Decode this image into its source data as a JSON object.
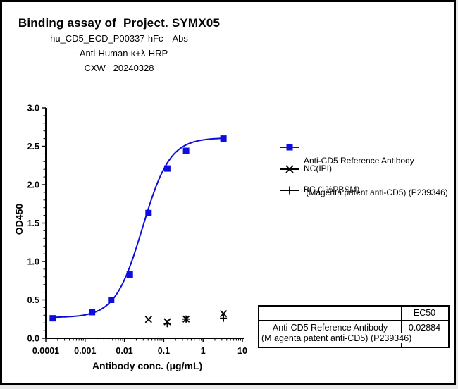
{
  "page": {
    "title": "Binding assay of  Project. SYMX05",
    "subtitle1": "hu_CD5_ECD_P00337-hFc---Abs",
    "subtitle2": "---Anti-Human-κ+λ-HRP",
    "subtitle3": "CXW   20240328"
  },
  "chart_data": {
    "type": "scatter",
    "x_scale": "log",
    "xlabel": "Antibody conc. (μg/mL)",
    "ylabel": "OD450",
    "xlim": [
      0.0001,
      10
    ],
    "ylim": [
      0.0,
      3.0
    ],
    "x_ticks": [
      "0.0001",
      "0.001",
      "0.01",
      "0.1",
      "1",
      "10"
    ],
    "y_ticks": [
      "0.0",
      "0.5",
      "1.0",
      "1.5",
      "2.0",
      "2.5",
      "3.0"
    ],
    "grid": false,
    "legend_position": "right",
    "series": [
      {
        "name": "Anti-CD5 Reference Antibody (Magenta patent anti-CD5) (P239346)",
        "marker": "square",
        "color": "#0d0de0",
        "curve_fit": {
          "model": "4PL",
          "bottom": 0.27,
          "top": 2.61,
          "ec50": 0.02884,
          "hill": 1.25
        },
        "x": [
          0.00015,
          0.0015,
          0.0046,
          0.0137,
          0.041,
          0.123,
          0.37,
          3.3
        ],
        "y": [
          0.26,
          0.34,
          0.5,
          0.83,
          1.63,
          2.21,
          2.44,
          2.6
        ]
      },
      {
        "name": "NC(IPI)",
        "marker": "x",
        "color": "#000000",
        "x": [
          0.041,
          0.123,
          0.37,
          3.3
        ],
        "y": [
          0.245,
          0.215,
          0.25,
          0.32
        ]
      },
      {
        "name": "BC (1%PBSM)",
        "marker": "plus",
        "color": "#000000",
        "x": [
          0.123,
          0.37,
          3.3
        ],
        "y": [
          0.19,
          0.25,
          0.26
        ]
      }
    ]
  },
  "legend": {
    "items": [
      {
        "marker": "square",
        "color": "#0d0de0",
        "line1": "Anti-CD5 Reference Antibody",
        "line2": " (Magenta patent anti-CD5) (P239346)"
      },
      {
        "marker": "x",
        "color": "#000000",
        "line1": "NC(IPI)",
        "line2": ""
      },
      {
        "marker": "plus",
        "color": "#000000",
        "line1": "BC (1%PBSM)",
        "line2": ""
      }
    ]
  },
  "table": {
    "header_ec50": "EC50",
    "row_label_line1": "Anti-CD5 Reference Antibody",
    "row_label_line2": "(M agenta patent anti-CD5) (P239346)",
    "ec50_value": "0.02884"
  }
}
